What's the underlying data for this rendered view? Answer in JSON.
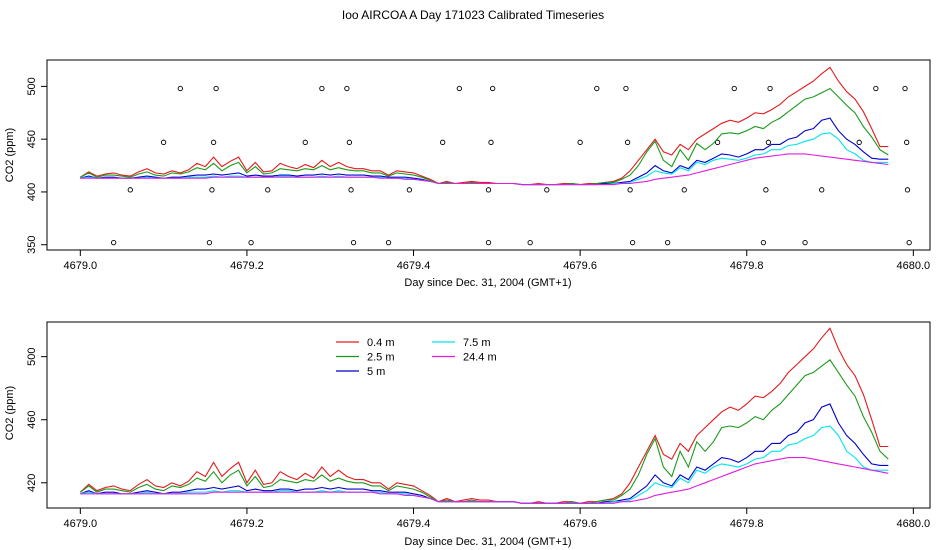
{
  "title": "Ioo AIRCOA A  Day 171023  Calibrated Timeseries",
  "colors": {
    "0.4 m": "#e41a1c",
    "2.5 m": "#1a9a1a",
    "5 m": "#0000cc",
    "7.5 m": "#00e5ee",
    "24.4 m": "#e01ee0"
  },
  "chart_data": [
    {
      "type": "scatter",
      "title": "Ioo AIRCOA A  Day 171023  Calibrated Timeseries",
      "xlabel": "Day since Dec. 31, 2004 (GMT+1)",
      "ylabel": "CO2 (ppm)",
      "xlim": [
        4678.96,
        4680.02
      ],
      "ylim": [
        345,
        525
      ],
      "xticks": [
        "4679.0",
        "4679.2",
        "4679.4",
        "4679.6",
        "4679.8",
        "4680.0"
      ],
      "yticks": [
        "350",
        "400",
        "450",
        "500"
      ],
      "points_label": "calibration / sample markers",
      "markers": [
        {
          "x": 4679.04,
          "y": 352
        },
        {
          "x": 4679.06,
          "y": 402
        },
        {
          "x": 4679.1,
          "y": 447
        },
        {
          "x": 4679.12,
          "y": 498
        },
        {
          "x": 4679.155,
          "y": 352
        },
        {
          "x": 4679.158,
          "y": 402
        },
        {
          "x": 4679.16,
          "y": 447
        },
        {
          "x": 4679.163,
          "y": 498
        },
        {
          "x": 4679.205,
          "y": 352
        },
        {
          "x": 4679.225,
          "y": 402
        },
        {
          "x": 4679.27,
          "y": 447
        },
        {
          "x": 4679.29,
          "y": 498
        },
        {
          "x": 4679.32,
          "y": 498
        },
        {
          "x": 4679.323,
          "y": 447
        },
        {
          "x": 4679.325,
          "y": 402
        },
        {
          "x": 4679.328,
          "y": 352
        },
        {
          "x": 4679.37,
          "y": 352
        },
        {
          "x": 4679.395,
          "y": 402
        },
        {
          "x": 4679.435,
          "y": 447
        },
        {
          "x": 4679.455,
          "y": 498
        },
        {
          "x": 4679.49,
          "y": 352
        },
        {
          "x": 4679.49,
          "y": 402
        },
        {
          "x": 4679.493,
          "y": 447
        },
        {
          "x": 4679.495,
          "y": 498
        },
        {
          "x": 4679.54,
          "y": 352
        },
        {
          "x": 4679.56,
          "y": 402
        },
        {
          "x": 4679.6,
          "y": 447
        },
        {
          "x": 4679.62,
          "y": 498
        },
        {
          "x": 4679.655,
          "y": 498
        },
        {
          "x": 4679.657,
          "y": 447
        },
        {
          "x": 4679.66,
          "y": 402
        },
        {
          "x": 4679.663,
          "y": 352
        },
        {
          "x": 4679.705,
          "y": 352
        },
        {
          "x": 4679.725,
          "y": 402
        },
        {
          "x": 4679.765,
          "y": 447
        },
        {
          "x": 4679.785,
          "y": 498
        },
        {
          "x": 4679.82,
          "y": 352
        },
        {
          "x": 4679.823,
          "y": 402
        },
        {
          "x": 4679.826,
          "y": 447
        },
        {
          "x": 4679.828,
          "y": 498
        },
        {
          "x": 4679.87,
          "y": 352
        },
        {
          "x": 4679.89,
          "y": 402
        },
        {
          "x": 4679.935,
          "y": 447
        },
        {
          "x": 4679.955,
          "y": 498
        },
        {
          "x": 4679.99,
          "y": 498
        },
        {
          "x": 4679.992,
          "y": 447
        },
        {
          "x": 4679.993,
          "y": 402
        },
        {
          "x": 4679.995,
          "y": 352
        }
      ]
    },
    {
      "type": "line",
      "xlabel": "Day since Dec. 31, 2004 (GMT+1)",
      "ylabel": "CO2 (ppm)",
      "xlim": [
        4678.96,
        4680.02
      ],
      "ylim": [
        404,
        522
      ],
      "xticks": [
        "4679.0",
        "4679.2",
        "4679.4",
        "4679.6",
        "4679.8",
        "4680.0"
      ],
      "yticks": [
        "420",
        "460",
        "500"
      ],
      "legend_position": "top-left",
      "series_x_start": 4679.0,
      "series_x_step": 0.01,
      "series": [
        {
          "name": "0.4 m",
          "values": [
            414,
            419,
            415,
            417,
            418,
            416,
            415,
            419,
            422,
            418,
            417,
            420,
            418,
            421,
            427,
            424,
            433,
            424,
            429,
            433,
            420,
            428,
            419,
            420,
            427,
            424,
            422,
            426,
            423,
            430,
            424,
            428,
            424,
            422,
            422,
            420,
            420,
            416,
            420,
            419,
            418,
            415,
            412,
            408,
            410,
            408,
            409,
            410,
            409,
            409,
            408,
            408,
            408,
            407,
            407,
            408,
            407,
            407,
            408,
            408,
            407,
            408,
            408,
            409,
            410,
            413,
            420,
            430,
            440,
            450,
            438,
            435,
            445,
            440,
            450,
            455,
            460,
            465,
            468,
            466,
            470,
            475,
            474,
            478,
            483,
            490,
            495,
            500,
            505,
            512,
            518,
            505,
            495,
            488,
            476,
            460,
            443,
            443
          ]
        },
        {
          "name": "2.5 m",
          "values": [
            414,
            418,
            414,
            416,
            416,
            415,
            414,
            417,
            419,
            416,
            415,
            418,
            417,
            419,
            423,
            421,
            427,
            420,
            425,
            428,
            418,
            424,
            417,
            418,
            422,
            421,
            420,
            422,
            421,
            425,
            421,
            423,
            421,
            420,
            420,
            418,
            418,
            415,
            418,
            417,
            416,
            414,
            411,
            408,
            409,
            408,
            408,
            409,
            408,
            408,
            408,
            408,
            408,
            407,
            407,
            407,
            407,
            407,
            407,
            408,
            407,
            407,
            408,
            409,
            409,
            412,
            416,
            425,
            438,
            448,
            430,
            424,
            440,
            430,
            446,
            440,
            446,
            455,
            456,
            455,
            458,
            462,
            460,
            466,
            470,
            476,
            482,
            488,
            490,
            494,
            498,
            490,
            482,
            475,
            462,
            452,
            440,
            435
          ]
        },
        {
          "name": "5 m",
          "values": [
            413,
            415,
            413,
            414,
            414,
            413,
            413,
            414,
            415,
            414,
            413,
            414,
            414,
            415,
            416,
            416,
            417,
            416,
            417,
            418,
            415,
            416,
            415,
            415,
            416,
            416,
            415,
            416,
            416,
            417,
            416,
            417,
            416,
            416,
            416,
            415,
            415,
            414,
            414,
            414,
            413,
            412,
            410,
            408,
            408,
            408,
            408,
            408,
            408,
            408,
            408,
            408,
            408,
            407,
            407,
            407,
            407,
            407,
            407,
            407,
            407,
            407,
            407,
            408,
            408,
            409,
            410,
            414,
            418,
            425,
            420,
            418,
            425,
            422,
            430,
            428,
            432,
            436,
            435,
            433,
            436,
            440,
            440,
            445,
            445,
            450,
            452,
            458,
            460,
            468,
            470,
            458,
            450,
            445,
            438,
            432,
            431,
            431
          ]
        },
        {
          "name": "7.5 m",
          "values": [
            413,
            414,
            413,
            413,
            413,
            413,
            413,
            413,
            414,
            413,
            413,
            413,
            413,
            414,
            414,
            414,
            415,
            414,
            415,
            415,
            414,
            414,
            414,
            414,
            415,
            415,
            414,
            414,
            414,
            415,
            414,
            415,
            414,
            414,
            414,
            414,
            414,
            413,
            413,
            413,
            412,
            411,
            410,
            408,
            408,
            408,
            408,
            408,
            408,
            408,
            408,
            408,
            408,
            407,
            407,
            407,
            407,
            407,
            407,
            407,
            407,
            407,
            407,
            407,
            408,
            408,
            409,
            412,
            415,
            420,
            418,
            417,
            423,
            420,
            428,
            426,
            430,
            432,
            431,
            430,
            432,
            435,
            436,
            440,
            440,
            444,
            445,
            448,
            450,
            455,
            456,
            450,
            440,
            436,
            430,
            428,
            428,
            428
          ]
        },
        {
          "name": "24.4 m",
          "values": [
            413,
            413,
            413,
            413,
            413,
            413,
            413,
            413,
            413,
            413,
            413,
            413,
            413,
            413,
            413,
            413,
            414,
            414,
            414,
            414,
            414,
            414,
            414,
            414,
            414,
            414,
            414,
            414,
            414,
            414,
            414,
            414,
            414,
            414,
            414,
            414,
            413,
            413,
            413,
            412,
            412,
            411,
            410,
            408,
            408,
            408,
            408,
            408,
            408,
            408,
            408,
            408,
            408,
            407,
            407,
            407,
            407,
            407,
            407,
            407,
            407,
            407,
            407,
            407,
            407,
            408,
            408,
            409,
            410,
            412,
            413,
            414,
            415,
            416,
            418,
            420,
            422,
            424,
            426,
            428,
            430,
            432,
            433,
            434,
            435,
            436,
            436,
            436,
            435,
            434,
            433,
            432,
            431,
            430,
            429,
            428,
            427,
            426
          ]
        }
      ]
    }
  ],
  "legend": [
    {
      "name": "0.4 m",
      "label": "0.4 m"
    },
    {
      "name": "2.5 m",
      "label": "2.5 m"
    },
    {
      "name": "5 m",
      "label": "5 m"
    },
    {
      "name": "7.5 m",
      "label": "7.5 m"
    },
    {
      "name": "24.4 m",
      "label": "24.4 m"
    }
  ]
}
